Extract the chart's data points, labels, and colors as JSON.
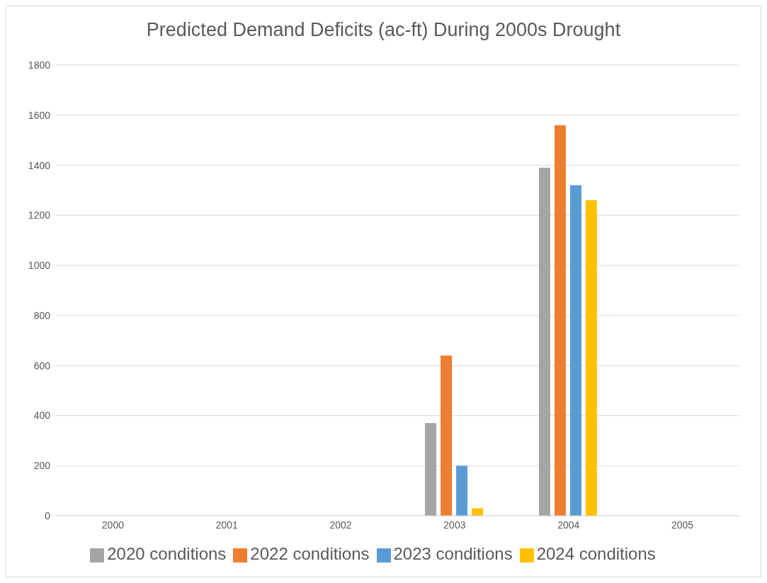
{
  "chart_data": {
    "type": "bar",
    "title": "Predicted Demand Deficits (ac-ft) During 2000s Drought",
    "categories": [
      "2000",
      "2001",
      "2002",
      "2003",
      "2004",
      "2005"
    ],
    "series": [
      {
        "name": "2020 conditions",
        "color": "#a5a5a5",
        "values": [
          0,
          0,
          0,
          370,
          1390,
          0
        ]
      },
      {
        "name": "2022 conditions",
        "color": "#ed7d31",
        "values": [
          0,
          0,
          0,
          640,
          1560,
          0
        ]
      },
      {
        "name": "2023 conditions",
        "color": "#5b9bd5",
        "values": [
          0,
          0,
          0,
          200,
          1320,
          0
        ]
      },
      {
        "name": "2024 conditions",
        "color": "#ffc000",
        "values": [
          0,
          0,
          0,
          30,
          1260,
          0
        ]
      }
    ],
    "ylim": [
      0,
      1800
    ],
    "yticks": [
      0,
      200,
      400,
      600,
      800,
      1000,
      1200,
      1400,
      1600,
      1800
    ],
    "grid": "y",
    "legend": "bottom"
  }
}
